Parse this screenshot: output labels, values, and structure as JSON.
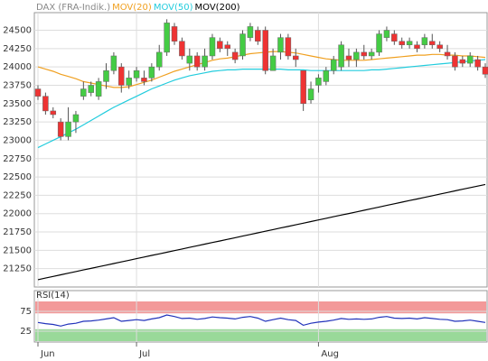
{
  "chart_data": [
    {
      "type": "candlestick",
      "categories": [
        "Jun",
        null,
        null,
        null,
        null,
        null,
        null,
        null,
        null,
        null,
        null,
        null,
        null,
        "Jul",
        null,
        null,
        null,
        null,
        null,
        null,
        null,
        null,
        null,
        null,
        null,
        null,
        null,
        null,
        null,
        null,
        null,
        null,
        null,
        null,
        null,
        null,
        null,
        "Aug",
        null,
        null,
        null,
        null,
        null,
        null,
        null,
        null,
        null,
        null,
        null,
        null,
        null,
        null,
        null,
        null,
        null,
        null,
        null,
        null,
        null,
        null
      ],
      "open": [
        23700,
        23600,
        23400,
        23250,
        23050,
        23250,
        23600,
        23650,
        23600,
        23800,
        23950,
        24000,
        23750,
        23850,
        23850,
        23850,
        24000,
        24200,
        24550,
        24350,
        24050,
        24150,
        24000,
        24150,
        24350,
        24300,
        24200,
        24150,
        24400,
        24500,
        24500,
        23950,
        24200,
        24400,
        24150,
        23950,
        23550,
        23750,
        23800,
        23950,
        24000,
        24150,
        24100,
        24200,
        24150,
        24200,
        24400,
        24450,
        24350,
        24300,
        24300,
        24300,
        24350,
        24300,
        24200,
        24150,
        24100,
        24050,
        24100,
        24000
      ],
      "high": [
        23750,
        23650,
        23450,
        23300,
        23450,
        23400,
        23800,
        23800,
        23850,
        24050,
        24200,
        24050,
        23950,
        24000,
        23950,
        24050,
        24300,
        24650,
        24600,
        24400,
        24250,
        24200,
        24250,
        24450,
        24400,
        24350,
        24250,
        24500,
        24600,
        24550,
        24550,
        24250,
        24450,
        24450,
        24250,
        23950,
        23800,
        23900,
        24000,
        24150,
        24350,
        24250,
        24250,
        24300,
        24250,
        24500,
        24550,
        24500,
        24400,
        24400,
        24350,
        24450,
        24450,
        24350,
        24300,
        24200,
        24150,
        24200,
        24150,
        24050
      ],
      "low": [
        23550,
        23350,
        23300,
        23000,
        23000,
        23100,
        23550,
        23600,
        23550,
        23700,
        23900,
        23650,
        23700,
        23800,
        23750,
        23800,
        23950,
        24150,
        24300,
        24100,
        23950,
        23950,
        23950,
        24100,
        24200,
        24150,
        24050,
        24100,
        24350,
        24300,
        23900,
        23950,
        24100,
        24100,
        24000,
        23400,
        23500,
        23650,
        23750,
        23900,
        23950,
        24000,
        24000,
        24100,
        24100,
        24150,
        24350,
        24300,
        24250,
        24250,
        24200,
        24250,
        24250,
        24200,
        24100,
        23950,
        24000,
        24000,
        23950,
        23850
      ],
      "close": [
        23600,
        23400,
        23350,
        23050,
        23250,
        23350,
        23700,
        23750,
        23800,
        23950,
        24150,
        23750,
        23850,
        23950,
        23800,
        24000,
        24200,
        24600,
        24350,
        24150,
        24150,
        24000,
        24150,
        24400,
        24250,
        24250,
        24100,
        24450,
        24550,
        24350,
        23950,
        24150,
        24400,
        24150,
        24100,
        23500,
        23700,
        23850,
        23950,
        24100,
        24300,
        24100,
        24200,
        24150,
        24200,
        24450,
        24500,
        24350,
        24300,
        24350,
        24250,
        24400,
        24300,
        24250,
        24150,
        24000,
        24050,
        24150,
        24000,
        23900
      ],
      "up_color": "#44cc44",
      "down_color": "#ee3333",
      "series": [
        {
          "name": "DAX (FRA-Indik.)",
          "color": "#888888",
          "values": null
        },
        {
          "name": "MOV(20)",
          "color": "#f0a020",
          "values": [
            24000,
            23970,
            23940,
            23900,
            23870,
            23840,
            23800,
            23780,
            23760,
            23740,
            23720,
            23720,
            23730,
            23760,
            23790,
            23820,
            23860,
            23900,
            23940,
            23970,
            24000,
            24030,
            24060,
            24090,
            24110,
            24120,
            24140,
            24160,
            24180,
            24190,
            24200,
            24210,
            24210,
            24200,
            24190,
            24170,
            24150,
            24130,
            24110,
            24100,
            24090,
            24090,
            24090,
            24090,
            24100,
            24110,
            24120,
            24130,
            24140,
            24150,
            24160,
            24160,
            24170,
            24170,
            24160,
            24160,
            24150,
            24150,
            24140,
            24130
          ]
        },
        {
          "name": "MOV(50)",
          "color": "#22ccdd",
          "values": [
            22900,
            22950,
            23000,
            23050,
            23100,
            23150,
            23210,
            23270,
            23330,
            23390,
            23450,
            23500,
            23550,
            23600,
            23650,
            23700,
            23740,
            23780,
            23820,
            23850,
            23880,
            23900,
            23920,
            23940,
            23950,
            23960,
            23960,
            23970,
            23970,
            23970,
            23970,
            23970,
            23970,
            23960,
            23960,
            23960,
            23950,
            23950,
            23950,
            23950,
            23950,
            23950,
            23950,
            23950,
            23960,
            23960,
            23970,
            23980,
            23990,
            24000,
            24010,
            24020,
            24030,
            24040,
            24050,
            24060,
            24070,
            24080,
            24090,
            24100
          ]
        },
        {
          "name": "MOV(200)",
          "color": "#000000",
          "values": [
            21100,
            21122,
            21144,
            21166,
            21188,
            21210,
            21232,
            21254,
            21276,
            21298,
            21320,
            21342,
            21364,
            21386,
            21408,
            21430,
            21452,
            21474,
            21496,
            21518,
            21540,
            21562,
            21584,
            21606,
            21628,
            21650,
            21672,
            21694,
            21716,
            21738,
            21760,
            21782,
            21804,
            21826,
            21848,
            21870,
            21892,
            21914,
            21936,
            21958,
            21980,
            22002,
            22024,
            22046,
            22068,
            22090,
            22112,
            22134,
            22156,
            22178,
            22200,
            22222,
            22244,
            22266,
            22288,
            22310,
            22332,
            22354,
            22376,
            22398
          ]
        }
      ],
      "ylim": [
        21000,
        24740
      ],
      "yticks": [
        21250,
        21500,
        21750,
        22000,
        22250,
        22500,
        22750,
        23000,
        23250,
        23500,
        23750,
        24000,
        24250,
        24500
      ],
      "grid": true
    },
    {
      "type": "line",
      "title": "RSI(14)",
      "series": [
        {
          "name": "RSI(14)",
          "color": "#2233bb",
          "values": [
            47,
            44,
            42,
            38,
            43,
            45,
            50,
            51,
            53,
            56,
            59,
            50,
            52,
            54,
            52,
            56,
            59,
            66,
            62,
            57,
            58,
            55,
            57,
            61,
            59,
            58,
            56,
            60,
            62,
            58,
            50,
            54,
            58,
            54,
            52,
            40,
            45,
            48,
            50,
            53,
            57,
            55,
            56,
            55,
            56,
            60,
            62,
            58,
            57,
            58,
            56,
            59,
            57,
            55,
            54,
            50,
            51,
            53,
            50,
            47
          ]
        }
      ],
      "ylim": [
        0,
        100
      ],
      "yticks": [
        25,
        75
      ],
      "bands": [
        {
          "range": [
            70,
            100
          ],
          "color": "#f08080"
        },
        {
          "range": [
            0,
            30
          ],
          "color": "#80d080"
        }
      ],
      "grid": true
    }
  ]
}
